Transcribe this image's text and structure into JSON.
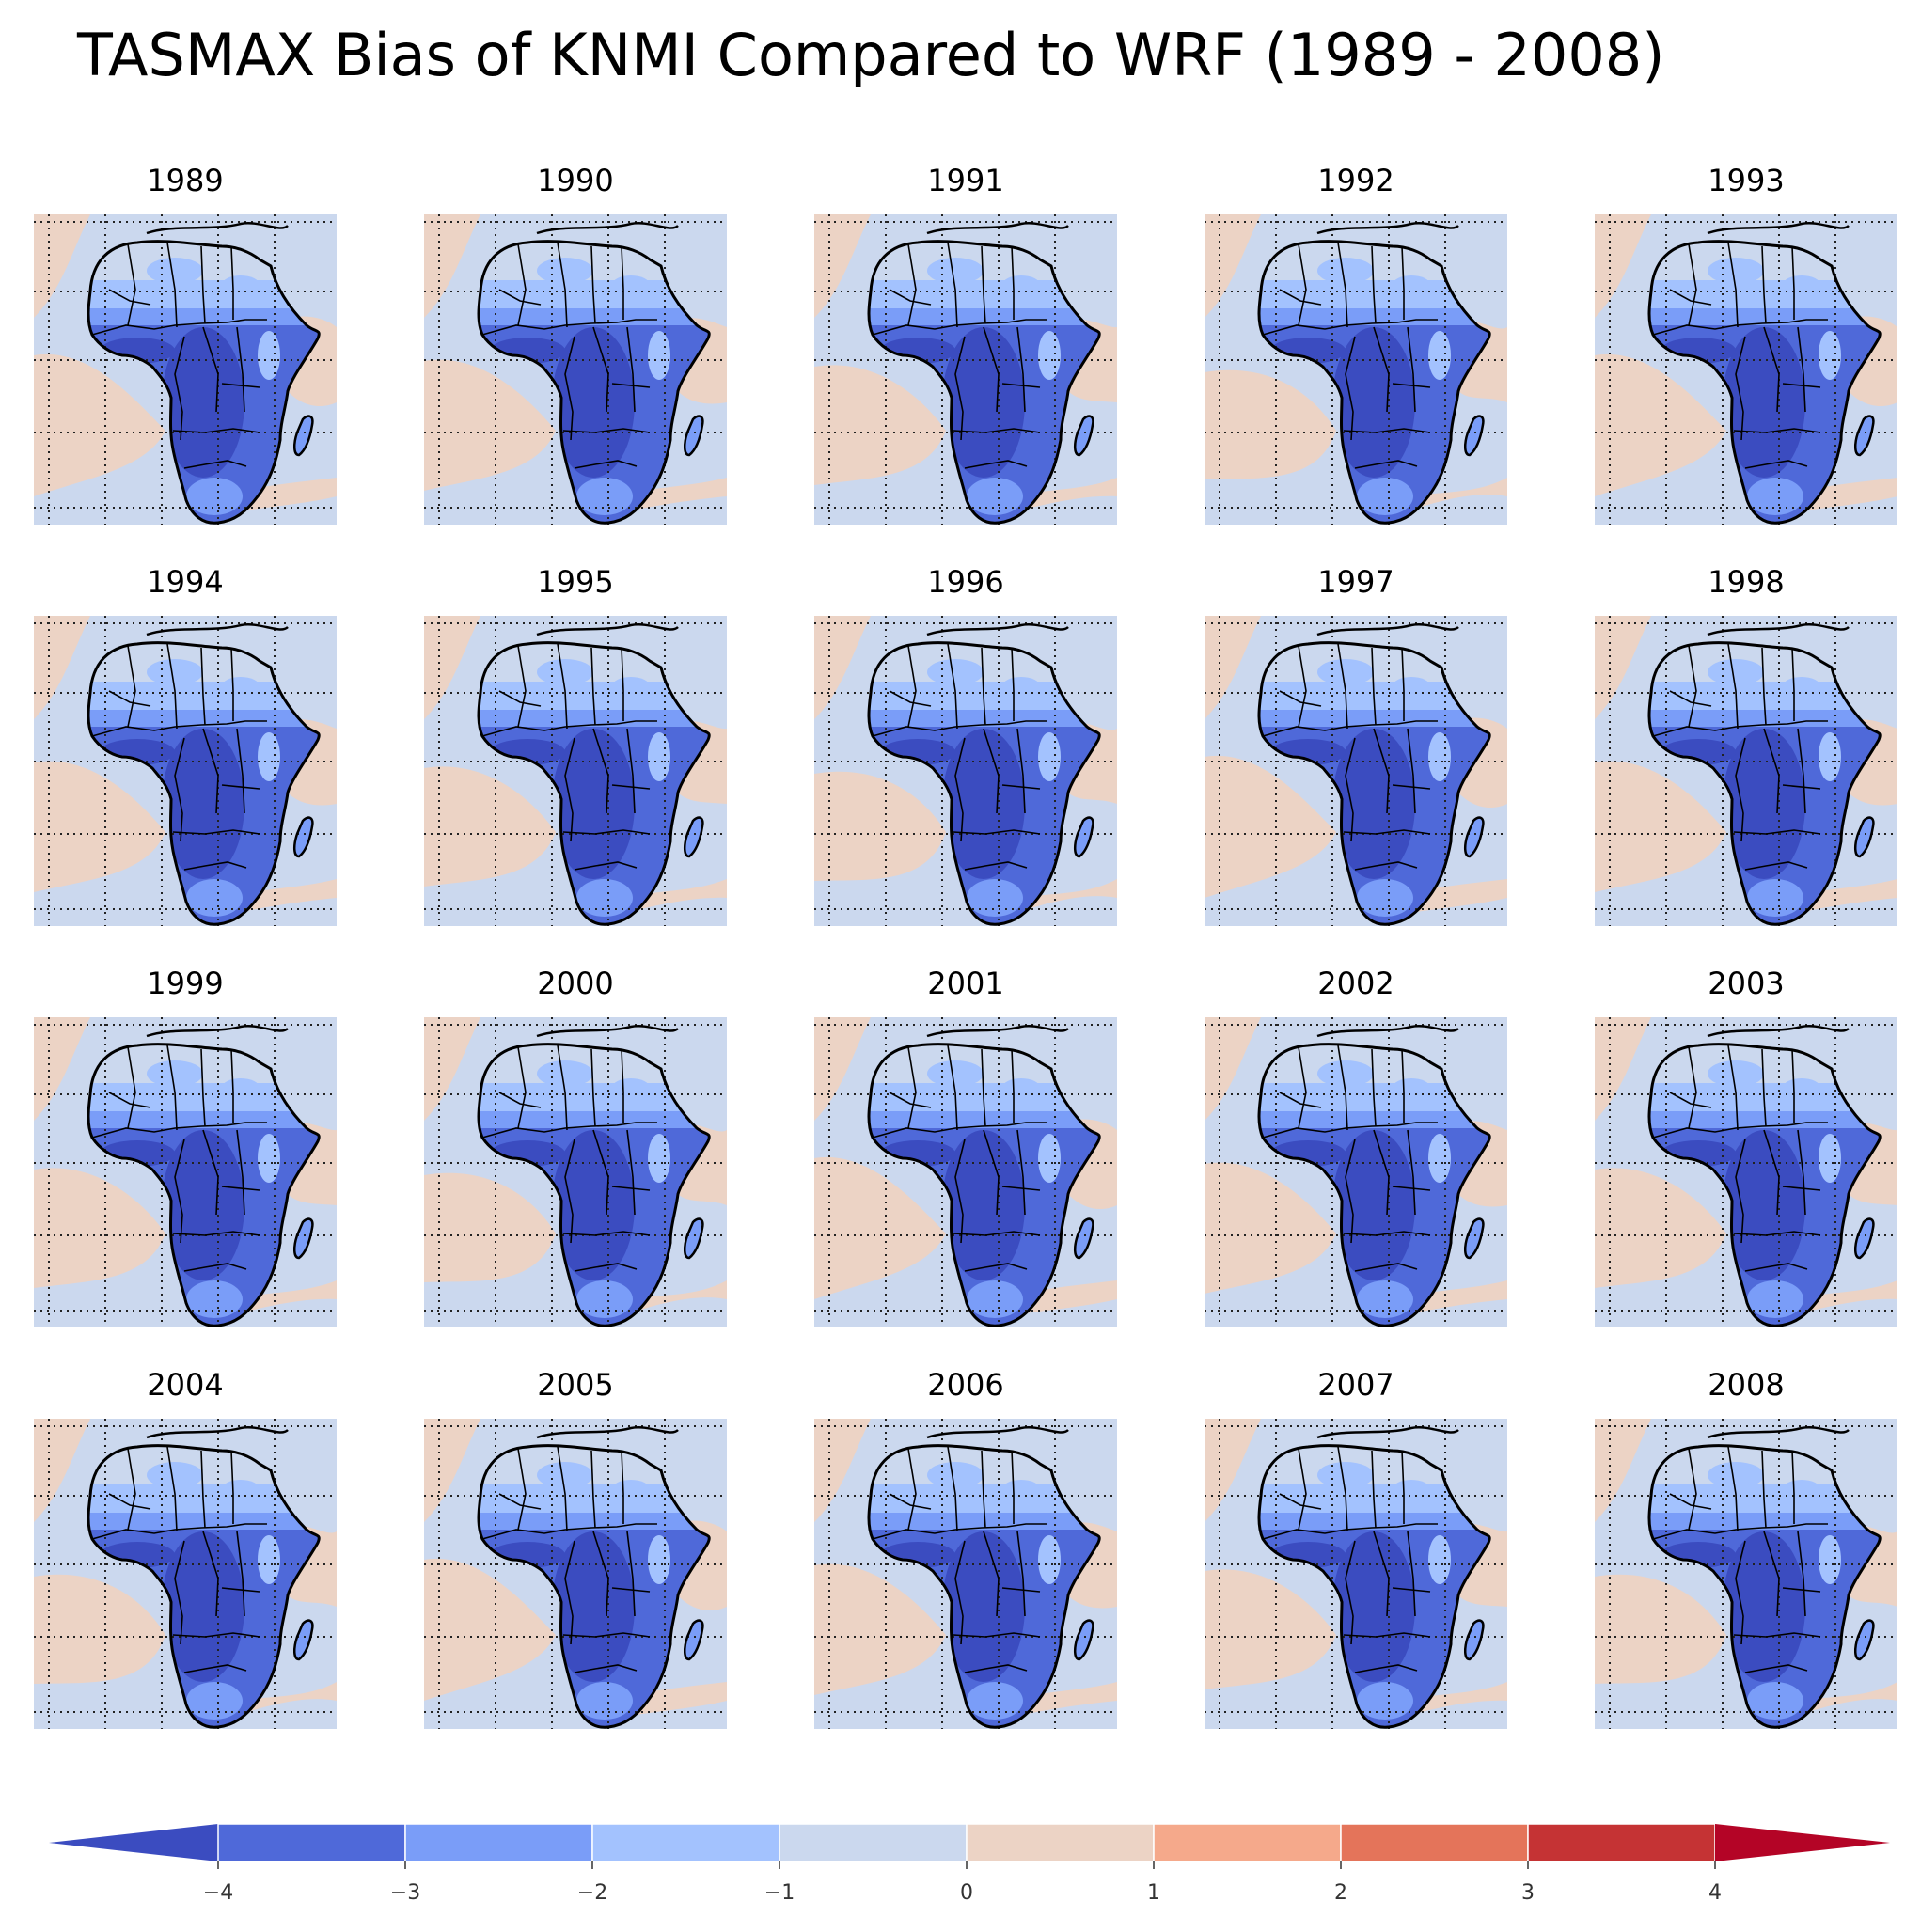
{
  "title": "TASMAX Bias of KNMI Compared to WRF (1989 - 2008)",
  "chart_data": {
    "type": "heatmap",
    "title": "TASMAX Bias of KNMI Compared to WRF (1989 - 2008)",
    "panels": [
      "1989",
      "1990",
      "1991",
      "1992",
      "1993",
      "1994",
      "1995",
      "1996",
      "1997",
      "1998",
      "1999",
      "2000",
      "2001",
      "2002",
      "2003",
      "2004",
      "2005",
      "2006",
      "2007",
      "2008"
    ],
    "colorbar": {
      "levels": [
        -4,
        -3,
        -2,
        -1,
        0,
        1,
        2,
        3,
        4
      ],
      "tick_labels": [
        "−4",
        "−3",
        "−2",
        "−1",
        "0",
        "1",
        "2",
        "3",
        "4"
      ],
      "extend": "both",
      "colors": [
        "#3b4cc0",
        "#4f69d9",
        "#7a9df8",
        "#a3c2fe",
        "#cbd8ee",
        "#ecd3c5",
        "#f5a98b",
        "#e4745a",
        "#c53334",
        "#b40426"
      ]
    },
    "colors": {
      "ocean_positive": "#ecd3c5",
      "ocean_neutral": "#cbd8ee",
      "land_light": "#a3c2fe",
      "land_mid": "#7a9df8",
      "land_strong": "#4f69d9",
      "land_deep": "#3b4cc0"
    },
    "grid": true,
    "projection_grid": "dotted"
  }
}
